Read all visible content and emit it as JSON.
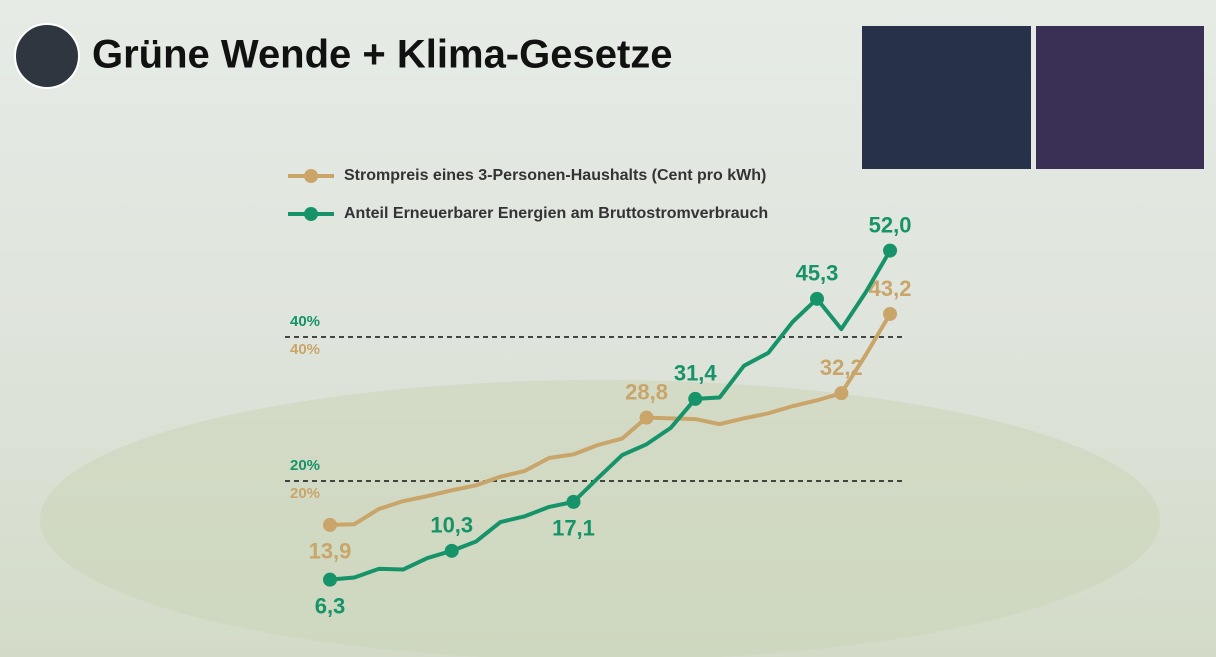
{
  "chart_data": {
    "type": "line",
    "title": "Grüne Wende + Klima-Gesetze",
    "categories": [
      null,
      null,
      null,
      null,
      null,
      null,
      null,
      null,
      null,
      null,
      null,
      null,
      null,
      null,
      null,
      null,
      null,
      null,
      null,
      null,
      null,
      null,
      null,
      null
    ],
    "series": [
      {
        "name": "Strompreis eines 3-Personen-Haushalts (Cent pro kWh)",
        "color": "#c9a56a",
        "axis": "y2",
        "values": [
          13.9,
          14.0,
          16.1,
          17.2,
          17.9,
          18.7,
          19.4,
          20.6,
          21.4,
          23.2,
          23.7,
          25.0,
          25.9,
          28.8,
          28.7,
          28.6,
          27.9,
          28.7,
          29.4,
          30.4,
          31.2,
          32.2,
          37.5,
          43.2
        ],
        "value_labels": [
          "13,9",
          null,
          null,
          null,
          null,
          null,
          null,
          null,
          null,
          null,
          null,
          null,
          null,
          "28,8",
          null,
          null,
          null,
          null,
          null,
          null,
          null,
          "32,2",
          null,
          "43,2"
        ]
      },
      {
        "name": "Anteil Erneuerbarer Energien am Bruttostromverbrauch",
        "color": "#17936a",
        "values": [
          6.3,
          6.6,
          7.8,
          7.7,
          9.3,
          10.3,
          11.6,
          14.3,
          15.1,
          16.4,
          17.1,
          20.4,
          23.6,
          25.1,
          27.4,
          31.4,
          31.6,
          36.0,
          37.8,
          42.1,
          45.3,
          41.1,
          46.2,
          52.0
        ],
        "value_labels": [
          "6,3",
          null,
          null,
          null,
          null,
          "10,3",
          null,
          null,
          null,
          null,
          "17,1",
          null,
          null,
          null,
          null,
          "31,4",
          null,
          null,
          null,
          null,
          "45,3",
          null,
          null,
          "52,0"
        ]
      }
    ],
    "ylim": [
      0,
      60
    ],
    "yticks": [
      {
        "value": 20,
        "label": "20%"
      },
      {
        "value": 40,
        "label": "40%"
      }
    ],
    "y2lim": [
      0,
      60
    ],
    "y2ticks": [
      {
        "value": 20,
        "label": "20%"
      },
      {
        "value": 40,
        "label": "40%"
      }
    ],
    "grid": true
  }
}
